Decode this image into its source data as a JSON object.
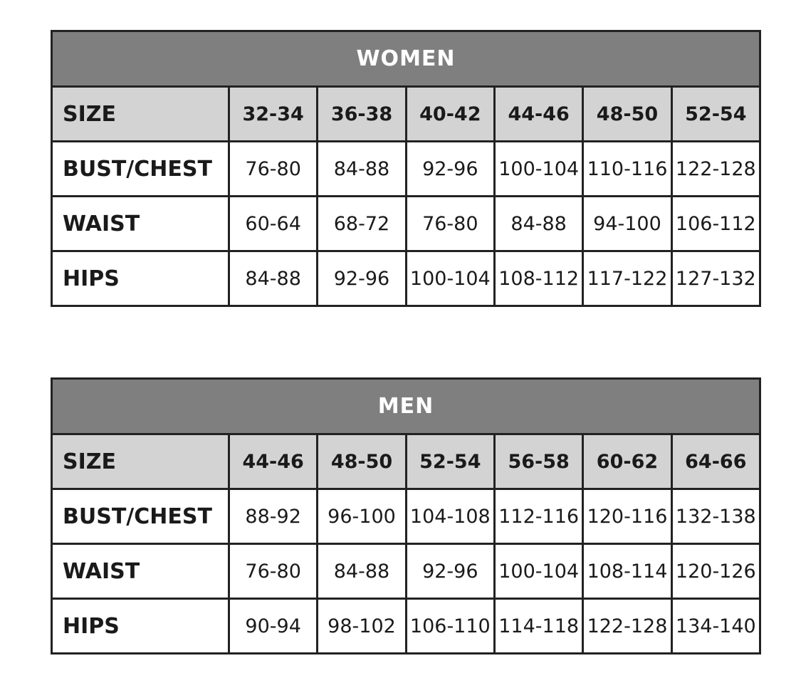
{
  "tables": [
    {
      "title": "WOMEN",
      "header": {
        "label": "SIZE",
        "sizes": [
          "32-34",
          "36-38",
          "40-42",
          "44-46",
          "48-50",
          "52-54"
        ]
      },
      "rows": [
        {
          "label": "BUST/CHEST",
          "values": [
            "76-80",
            "84-88",
            "92-96",
            "100-104",
            "110-116",
            "122-128"
          ]
        },
        {
          "label": "WAIST",
          "values": [
            "60-64",
            "68-72",
            "76-80",
            "84-88",
            "94-100",
            "106-112"
          ]
        },
        {
          "label": "HIPS",
          "values": [
            "84-88",
            "92-96",
            "100-104",
            "108-112",
            "117-122",
            "127-132"
          ]
        }
      ]
    },
    {
      "title": "MEN",
      "header": {
        "label": "SIZE",
        "sizes": [
          "44-46",
          "48-50",
          "52-54",
          "56-58",
          "60-62",
          "64-66"
        ]
      },
      "rows": [
        {
          "label": "BUST/CHEST",
          "values": [
            "88-92",
            "96-100",
            "104-108",
            "112-116",
            "120-116",
            "132-138"
          ]
        },
        {
          "label": "WAIST",
          "values": [
            "76-80",
            "84-88",
            "92-96",
            "100-104",
            "108-114",
            "120-126"
          ]
        },
        {
          "label": "HIPS",
          "values": [
            "90-94",
            "98-102",
            "106-110",
            "114-118",
            "122-128",
            "134-140"
          ]
        }
      ]
    }
  ],
  "colors": {
    "title_bg": "#7f7f7f",
    "header_bg": "#d3d3d3",
    "border": "#222222"
  }
}
